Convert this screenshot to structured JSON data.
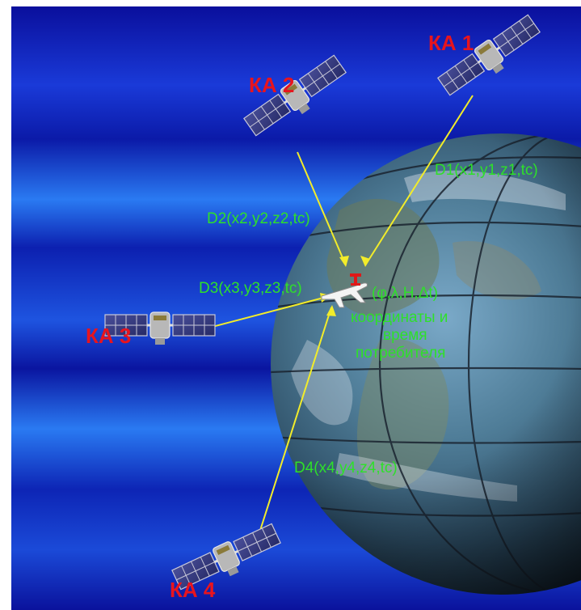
{
  "satellites": [
    {
      "id": "ka1",
      "label": "КА 1",
      "range_label": "D1(x1,y1,z1,tc)"
    },
    {
      "id": "ka2",
      "label": "КА 2",
      "range_label": "D2(x2,y2,z2,tc)"
    },
    {
      "id": "ka3",
      "label": "КА 3",
      "range_label": "D3(x3,y3,z3,tc)"
    },
    {
      "id": "ka4",
      "label": "КА 4",
      "range_label": "D4(x4,y4,z4,tc)"
    }
  ],
  "user": {
    "params": "(φ,λ,H,Δt)",
    "caption_line1": "координаты и",
    "caption_line2": "время",
    "caption_line3": "потребителя"
  },
  "colors": {
    "space_top": "#0a0f9c",
    "space_band": "#2a7af2",
    "satellite_label": "#e8141e",
    "range_label": "#2ee02a",
    "signal_line": "#f2ec2a"
  },
  "icons": [
    "satellite-icon",
    "earth-globe",
    "aircraft-icon",
    "receiver-antenna-icon"
  ]
}
